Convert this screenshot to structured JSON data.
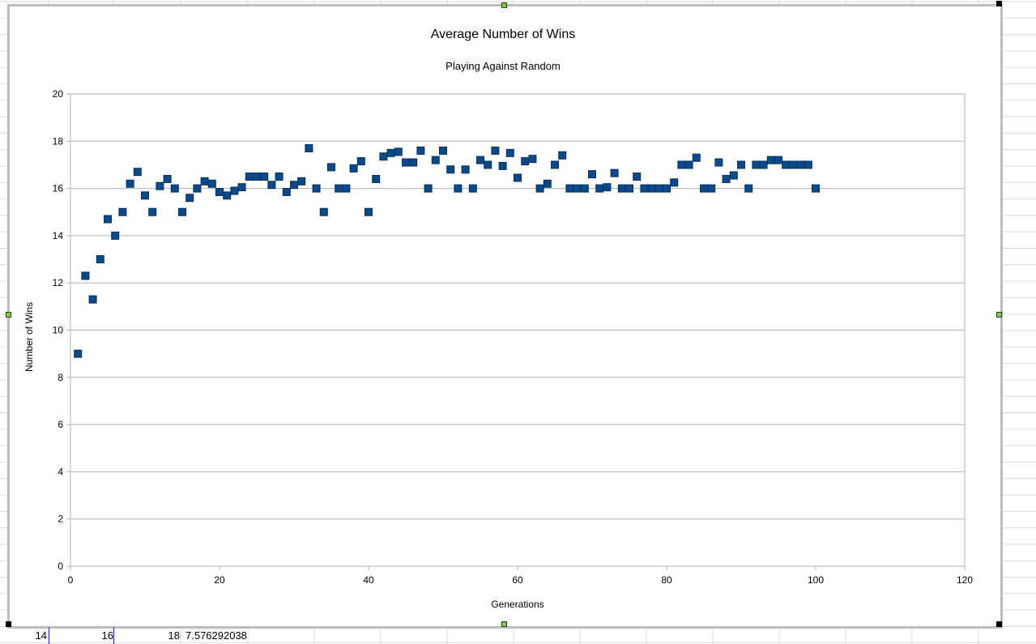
{
  "chart_data": {
    "type": "scatter",
    "title": "Average Number of Wins",
    "subtitle": "Playing Against Random",
    "xlabel": "Generations",
    "ylabel": "Number of Wins",
    "xlim": [
      0,
      120
    ],
    "ylim": [
      0,
      20
    ],
    "x_ticks": [
      0,
      20,
      40,
      60,
      80,
      100,
      120
    ],
    "y_ticks": [
      0,
      2,
      4,
      6,
      8,
      10,
      12,
      14,
      16,
      18,
      20
    ],
    "grid": true,
    "legend": "none",
    "marker_color": "#0b4a8a",
    "series": [
      {
        "x": [
          1,
          2,
          3,
          4,
          5,
          6,
          7,
          8,
          9,
          10,
          11,
          12,
          13,
          14,
          15,
          16,
          17,
          18,
          19,
          20,
          21,
          22,
          23,
          24,
          25,
          26,
          27,
          28,
          29,
          30,
          31,
          32,
          33,
          34,
          35,
          36,
          37,
          38,
          39,
          40,
          41,
          42,
          43,
          44,
          45,
          46,
          47,
          48,
          49,
          50,
          51,
          52,
          53,
          54,
          55,
          56,
          57,
          58,
          59,
          60,
          61,
          62,
          63,
          64,
          65,
          66,
          67,
          68,
          69,
          70,
          71,
          72,
          73,
          74,
          75,
          76,
          77,
          78,
          79,
          80,
          81,
          82,
          83,
          84,
          85,
          86,
          87,
          88,
          89,
          90,
          91,
          92,
          93,
          94,
          95,
          96,
          97,
          98,
          99,
          100
        ],
        "values": [
          9.0,
          12.3,
          11.3,
          13.0,
          14.7,
          14.0,
          15.0,
          16.2,
          16.7,
          15.7,
          15.0,
          16.1,
          16.4,
          16.0,
          15.0,
          15.6,
          16.0,
          16.3,
          16.2,
          15.85,
          15.7,
          15.9,
          16.05,
          16.5,
          16.5,
          16.5,
          16.15,
          16.5,
          15.85,
          16.15,
          16.3,
          17.7,
          16.0,
          15.0,
          16.9,
          16.0,
          16.0,
          16.85,
          17.15,
          15.0,
          16.4,
          17.35,
          17.5,
          17.55,
          17.1,
          17.1,
          17.6,
          16.0,
          17.2,
          17.6,
          16.8,
          16.0,
          16.8,
          16.0,
          17.2,
          17.0,
          17.6,
          16.95,
          17.5,
          16.45,
          17.15,
          17.25,
          16.0,
          16.2,
          17.0,
          17.4,
          16.0,
          16.0,
          16.0,
          16.6,
          16.0,
          16.05,
          16.65,
          16.0,
          16.0,
          16.5,
          16.0,
          16.0,
          16.0,
          16.0,
          16.25,
          17.0,
          17.0,
          17.3,
          16.0,
          16.0,
          17.1,
          16.4,
          16.55,
          17.0,
          16.0,
          17.0,
          17.0,
          17.2,
          17.2,
          17.0,
          17.0,
          17.0,
          17.0,
          16.0
        ]
      }
    ]
  },
  "sheet": {
    "bottom_cells": [
      "14",
      "16",
      "18",
      "7.576292038"
    ]
  }
}
